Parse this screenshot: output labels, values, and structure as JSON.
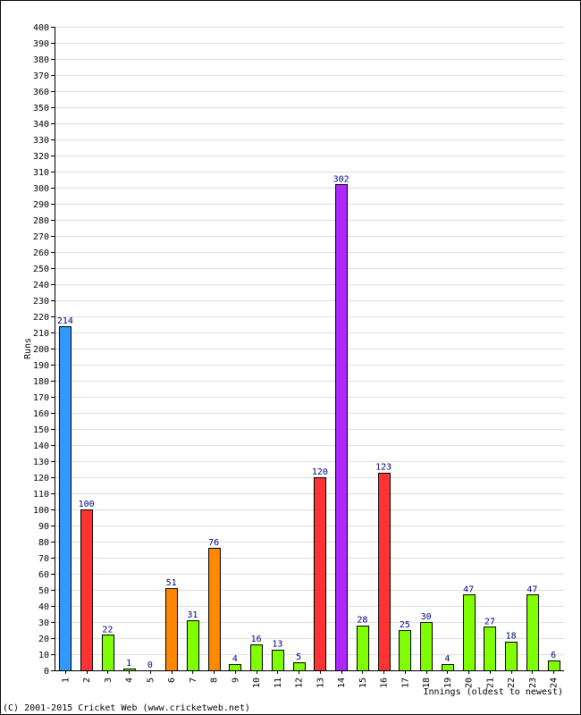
{
  "chart_data": {
    "type": "bar",
    "title": "",
    "xlabel": "Innings (oldest to newest)",
    "ylabel": "Runs",
    "ylim": [
      0,
      400
    ],
    "ytick_step": 10,
    "grid": true,
    "categories": [
      "1",
      "2",
      "3",
      "4",
      "5",
      "6",
      "7",
      "8",
      "9",
      "10",
      "11",
      "12",
      "13",
      "14",
      "15",
      "16",
      "17",
      "18",
      "19",
      "20",
      "21",
      "22",
      "23",
      "24"
    ],
    "values": [
      214,
      100,
      22,
      1,
      0,
      51,
      31,
      76,
      4,
      16,
      13,
      5,
      120,
      302,
      28,
      123,
      25,
      30,
      4,
      47,
      27,
      18,
      47,
      6
    ],
    "value_labels": [
      "214",
      "100",
      "22",
      "1",
      "0",
      "51",
      "31",
      "76",
      "4",
      "16",
      "13",
      "5",
      "120",
      "302",
      "28",
      "123",
      "25",
      "30",
      "4",
      "47",
      "27",
      "18",
      "47",
      "6"
    ],
    "colors": [
      "#3399ff",
      "#ff3333",
      "#80ff00",
      "#80ff00",
      "#80ff00",
      "#ff8800",
      "#80ff00",
      "#ff8800",
      "#80ff00",
      "#80ff00",
      "#80ff00",
      "#80ff00",
      "#ff3333",
      "#b026ff",
      "#80ff00",
      "#ff3333",
      "#80ff00",
      "#80ff00",
      "#80ff00",
      "#80ff00",
      "#80ff00",
      "#80ff00",
      "#80ff00",
      "#80ff00"
    ]
  },
  "footer": {
    "copyright": "(C) 2001-2015 Cricket Web (www.cricketweb.net)"
  }
}
